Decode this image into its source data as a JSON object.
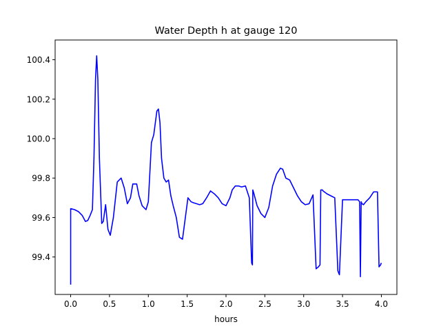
{
  "chart_data": {
    "type": "line",
    "title": "Water Depth h at gauge 120",
    "xlabel": "hours",
    "ylabel": "",
    "xlim": [
      -0.2,
      4.2
    ],
    "ylim": [
      99.21,
      100.5
    ],
    "xticks": [
      0.0,
      0.5,
      1.0,
      1.5,
      2.0,
      2.5,
      3.0,
      3.5,
      4.0
    ],
    "xtick_labels": [
      "0.0",
      "0.5",
      "1.0",
      "1.5",
      "2.0",
      "2.5",
      "3.0",
      "3.5",
      "4.0"
    ],
    "yticks": [
      99.4,
      99.6,
      99.8,
      100.0,
      100.2,
      100.4
    ],
    "ytick_labels": [
      "99.4",
      "99.6",
      "99.8",
      "100.0",
      "100.2",
      "100.4"
    ],
    "grid": false,
    "series": [
      {
        "color": "#0000ff",
        "x": [
          0.0,
          0.0,
          0.05,
          0.1,
          0.15,
          0.19,
          0.22,
          0.25,
          0.28,
          0.3,
          0.32,
          0.335,
          0.35,
          0.37,
          0.4,
          0.42,
          0.45,
          0.48,
          0.51,
          0.55,
          0.6,
          0.65,
          0.69,
          0.73,
          0.77,
          0.8,
          0.85,
          0.88,
          0.92,
          0.97,
          1.0,
          1.04,
          1.07,
          1.11,
          1.13,
          1.15,
          1.17,
          1.2,
          1.23,
          1.26,
          1.29,
          1.32,
          1.36,
          1.4,
          1.44,
          1.47,
          1.51,
          1.55,
          1.58,
          1.62,
          1.66,
          1.7,
          1.75,
          1.8,
          1.85,
          1.9,
          1.95,
          2.0,
          2.05,
          2.08,
          2.12,
          2.16,
          2.2,
          2.25,
          2.3,
          2.33,
          2.34,
          2.345,
          2.36,
          2.4,
          2.45,
          2.5,
          2.55,
          2.6,
          2.65,
          2.7,
          2.73,
          2.77,
          2.82,
          2.87,
          2.92,
          2.97,
          3.02,
          3.07,
          3.12,
          3.16,
          3.19,
          3.2,
          3.21,
          3.22,
          3.23,
          3.24,
          3.25,
          3.3,
          3.35,
          3.4,
          3.44,
          3.45,
          3.46,
          3.5,
          3.51,
          3.52,
          3.6,
          3.65,
          3.7,
          3.72,
          3.73,
          3.74,
          3.75,
          3.77,
          3.8,
          3.85,
          3.9,
          3.95,
          3.97,
          3.98,
          3.99,
          4.0
        ],
        "y": [
          99.26,
          99.645,
          99.64,
          99.63,
          99.61,
          99.58,
          99.585,
          99.61,
          99.64,
          99.9,
          100.3,
          100.42,
          100.3,
          99.9,
          99.57,
          99.58,
          99.665,
          99.54,
          99.51,
          99.6,
          99.78,
          99.8,
          99.75,
          99.67,
          99.7,
          99.77,
          99.77,
          99.71,
          99.66,
          99.64,
          99.68,
          99.98,
          100.02,
          100.14,
          100.15,
          100.08,
          99.9,
          99.8,
          99.78,
          99.79,
          99.71,
          99.66,
          99.6,
          99.5,
          99.49,
          99.58,
          99.7,
          99.68,
          99.675,
          99.67,
          99.665,
          99.67,
          99.7,
          99.735,
          99.72,
          99.7,
          99.67,
          99.66,
          99.7,
          99.74,
          99.76,
          99.76,
          99.755,
          99.76,
          99.7,
          99.37,
          99.36,
          99.74,
          99.72,
          99.66,
          99.62,
          99.6,
          99.65,
          99.76,
          99.82,
          99.85,
          99.845,
          99.8,
          99.79,
          99.75,
          99.71,
          99.68,
          99.665,
          99.67,
          99.715,
          99.34,
          99.35,
          99.355,
          99.36,
          99.74,
          99.74,
          99.74,
          99.735,
          99.72,
          99.71,
          99.7,
          99.33,
          99.32,
          99.31,
          99.69,
          99.69,
          99.69,
          99.69,
          99.69,
          99.69,
          99.68,
          99.3,
          99.68,
          99.67,
          99.665,
          99.68,
          99.7,
          99.73,
          99.73,
          99.35,
          99.355,
          99.36,
          99.37
        ]
      }
    ]
  }
}
